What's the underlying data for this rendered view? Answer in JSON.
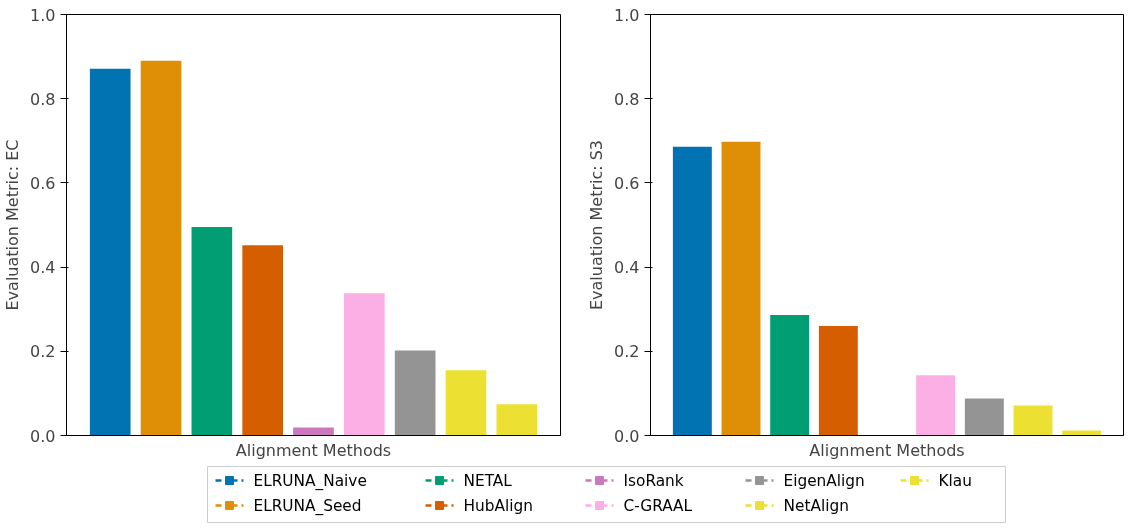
{
  "chart_data": [
    {
      "type": "bar",
      "categories": [
        null
      ],
      "xlabel": "Alignment Methods",
      "ylabel": "Evaluation Metric: EC",
      "ylim": [
        0,
        1.0
      ],
      "yticks": [
        {
          "value": 0,
          "label": "0.0"
        },
        {
          "value": 0.2,
          "label": "0.2"
        },
        {
          "value": 0.4,
          "label": "0.4"
        },
        {
          "value": 0.6,
          "label": "0.6"
        },
        {
          "value": 0.8,
          "label": "0.8"
        },
        {
          "value": 1.0,
          "label": "1.0"
        }
      ],
      "grid": false,
      "legend": "bottom",
      "marker": "square",
      "line_style": "dashdot",
      "series": [
        {
          "name": "ELRUNA_Naive",
          "color": "#0173b2",
          "values": [
            0.871
          ]
        },
        {
          "name": "ELRUNA_Seed",
          "color": "#de8f05",
          "values": [
            0.89
          ]
        },
        {
          "name": "NETAL",
          "color": "#029e73",
          "values": [
            0.495
          ]
        },
        {
          "name": "HubAlign",
          "color": "#d55e00",
          "values": [
            0.452
          ]
        },
        {
          "name": "IsoRank",
          "color": "#cc78bc",
          "values": [
            0.019
          ]
        },
        {
          "name": "C-GRAAL",
          "color": "#fbafe4",
          "values": [
            0.338
          ]
        },
        {
          "name": "EigenAlign",
          "color": "#949494",
          "values": [
            0.202
          ]
        },
        {
          "name": "NetAlign",
          "color": "#ece133",
          "values": [
            0.155
          ]
        },
        {
          "name": "Klau",
          "color": "#ece133",
          "values": [
            0.074
          ]
        }
      ]
    },
    {
      "type": "bar",
      "categories": [
        null
      ],
      "xlabel": "Alignment Methods",
      "ylabel": "Evaluation Metric: S3",
      "ylim": [
        0,
        1.0
      ],
      "yticks": [
        {
          "value": 0,
          "label": "0.0"
        },
        {
          "value": 0.2,
          "label": "0.2"
        },
        {
          "value": 0.4,
          "label": "0.4"
        },
        {
          "value": 0.6,
          "label": "0.6"
        },
        {
          "value": 0.8,
          "label": "0.8"
        },
        {
          "value": 1.0,
          "label": "1.0"
        }
      ],
      "grid": false,
      "series": [
        {
          "name": "ELRUNA_Naive",
          "color": "#0173b2",
          "values": [
            0.686
          ]
        },
        {
          "name": "ELRUNA_Seed",
          "color": "#de8f05",
          "values": [
            0.698
          ]
        },
        {
          "name": "NETAL",
          "color": "#029e73",
          "values": [
            0.286
          ]
        },
        {
          "name": "HubAlign",
          "color": "#d55e00",
          "values": [
            0.26
          ]
        },
        {
          "name": "IsoRank",
          "color": "#cc78bc",
          "values": [
            0.0
          ]
        },
        {
          "name": "C-GRAAL",
          "color": "#fbafe4",
          "values": [
            0.143
          ]
        },
        {
          "name": "EigenAlign",
          "color": "#949494",
          "values": [
            0.088
          ]
        },
        {
          "name": "NetAlign",
          "color": "#ece133",
          "values": [
            0.071
          ]
        },
        {
          "name": "Klau",
          "color": "#ece133",
          "values": [
            0.012
          ]
        }
      ]
    }
  ]
}
